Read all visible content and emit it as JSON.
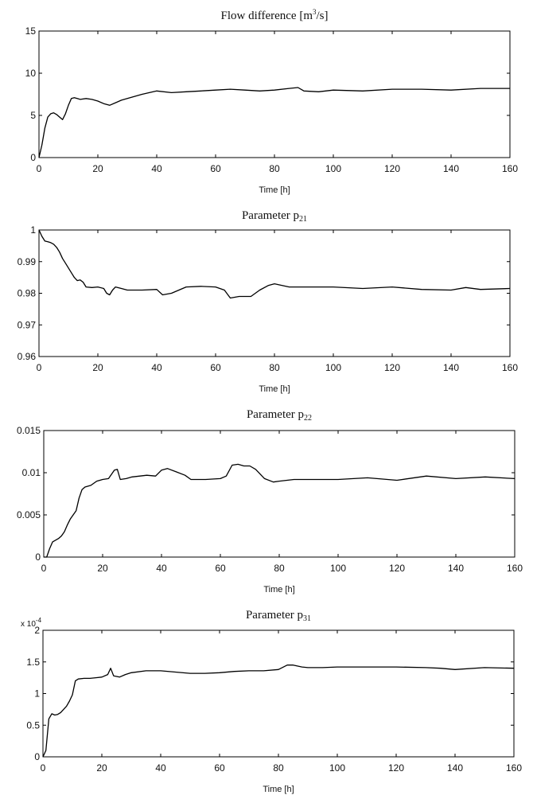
{
  "chart_data": [
    {
      "type": "line",
      "title": {
        "main": "Flow difference [m",
        "sup": "3",
        "tail": "/s]"
      },
      "xlabel": "Time [h]",
      "ylabel": "",
      "xlim": [
        0,
        160
      ],
      "ylim": [
        0,
        15
      ],
      "xticks": [
        0,
        20,
        40,
        60,
        80,
        100,
        120,
        140,
        160
      ],
      "xtick_labels": [
        "0",
        "20",
        "40",
        "60",
        "80",
        "100",
        "120",
        "140",
        "160"
      ],
      "yticks": [
        0,
        5,
        10,
        15
      ],
      "ytick_labels": [
        "0",
        "5",
        "10",
        "15"
      ],
      "grid": false,
      "series": [
        {
          "x": [
            0,
            1,
            2,
            3,
            4,
            5,
            6,
            7,
            8,
            9,
            10,
            11,
            12,
            13,
            14,
            16,
            18,
            20,
            22,
            24,
            26,
            28,
            30,
            35,
            40,
            45,
            50,
            55,
            60,
            65,
            70,
            75,
            80,
            85,
            88,
            90,
            95,
            100,
            110,
            120,
            130,
            140,
            150,
            160
          ],
          "y": [
            0,
            1.5,
            3.5,
            4.8,
            5.2,
            5.3,
            5.1,
            4.8,
            4.5,
            5.2,
            6.2,
            7.0,
            7.1,
            7.0,
            6.9,
            7.0,
            6.9,
            6.7,
            6.4,
            6.2,
            6.5,
            6.8,
            7.0,
            7.5,
            7.9,
            7.7,
            7.8,
            7.9,
            8.0,
            8.1,
            8.0,
            7.9,
            8.0,
            8.2,
            8.3,
            7.9,
            7.8,
            8.0,
            7.9,
            8.1,
            8.1,
            8.0,
            8.2,
            8.2
          ]
        }
      ]
    },
    {
      "type": "line",
      "title": {
        "main": "Parameter p",
        "sub": "21"
      },
      "xlabel": "Time [h]",
      "ylabel": "",
      "xlim": [
        0,
        160
      ],
      "ylim": [
        0.96,
        1
      ],
      "xticks": [
        0,
        20,
        40,
        60,
        80,
        100,
        120,
        140,
        160
      ],
      "xtick_labels": [
        "0",
        "20",
        "40",
        "60",
        "80",
        "100",
        "120",
        "140",
        "160"
      ],
      "yticks": [
        0.96,
        0.97,
        0.98,
        0.99,
        1
      ],
      "ytick_labels": [
        "0.96",
        "0.97",
        "0.98",
        "0.99",
        "1"
      ],
      "grid": false,
      "series": [
        {
          "x": [
            0,
            1,
            2,
            3,
            4,
            5,
            6,
            7,
            8,
            9,
            10,
            11,
            12,
            13,
            14,
            15,
            16,
            18,
            20,
            22,
            23,
            24,
            25,
            26,
            28,
            30,
            35,
            40,
            42,
            45,
            50,
            55,
            60,
            63,
            65,
            68,
            72,
            75,
            78,
            80,
            85,
            90,
            100,
            110,
            120,
            130,
            140,
            145,
            150,
            160
          ],
          "y": [
            1,
            0.998,
            0.9965,
            0.9963,
            0.996,
            0.9955,
            0.9945,
            0.993,
            0.991,
            0.9895,
            0.988,
            0.9865,
            0.985,
            0.984,
            0.9842,
            0.9835,
            0.982,
            0.9818,
            0.982,
            0.9815,
            0.98,
            0.9795,
            0.981,
            0.982,
            0.9815,
            0.981,
            0.981,
            0.9812,
            0.9795,
            0.98,
            0.982,
            0.9822,
            0.982,
            0.981,
            0.9785,
            0.979,
            0.979,
            0.981,
            0.9825,
            0.983,
            0.982,
            0.982,
            0.982,
            0.9815,
            0.982,
            0.9812,
            0.981,
            0.9818,
            0.9812,
            0.9815
          ]
        }
      ]
    },
    {
      "type": "line",
      "title": {
        "main": "Parameter p",
        "sub": "22"
      },
      "xlabel": "Time [h]",
      "ylabel": "",
      "xlim": [
        0,
        160
      ],
      "ylim": [
        0,
        0.015
      ],
      "xticks": [
        0,
        20,
        40,
        60,
        80,
        100,
        120,
        140,
        160
      ],
      "xtick_labels": [
        "0",
        "20",
        "40",
        "60",
        "80",
        "100",
        "120",
        "140",
        "160"
      ],
      "yticks": [
        0,
        0.005,
        0.01,
        0.015
      ],
      "ytick_labels": [
        "0",
        "0.005",
        "0.01",
        "0.015"
      ],
      "grid": false,
      "series": [
        {
          "x": [
            0,
            1,
            2,
            3,
            4,
            5,
            6,
            7,
            8,
            9,
            10,
            11,
            12,
            13,
            14,
            16,
            18,
            20,
            22,
            24,
            25,
            26,
            28,
            30,
            35,
            38,
            40,
            42,
            45,
            48,
            50,
            55,
            60,
            62,
            64,
            66,
            68,
            70,
            72,
            75,
            78,
            80,
            85,
            90,
            100,
            110,
            120,
            130,
            140,
            150,
            160
          ],
          "y": [
            0,
            0,
            0.001,
            0.0018,
            0.002,
            0.0022,
            0.0025,
            0.003,
            0.0038,
            0.0045,
            0.005,
            0.0055,
            0.007,
            0.008,
            0.0083,
            0.0085,
            0.009,
            0.0092,
            0.0093,
            0.0103,
            0.0104,
            0.0092,
            0.0093,
            0.0095,
            0.0097,
            0.0096,
            0.0103,
            0.0105,
            0.0101,
            0.0097,
            0.0092,
            0.0092,
            0.0093,
            0.0096,
            0.0109,
            0.011,
            0.0108,
            0.0108,
            0.0104,
            0.0093,
            0.0089,
            0.009,
            0.0092,
            0.0092,
            0.0092,
            0.0094,
            0.0091,
            0.0096,
            0.0093,
            0.0095,
            0.0093
          ]
        }
      ]
    },
    {
      "type": "line",
      "title": {
        "main": "Parameter p",
        "sub": "31"
      },
      "xlabel": "Time [h]",
      "ylabel": "",
      "y_multiplier": "x 10",
      "y_multiplier_exp": "-4",
      "xlim": [
        0,
        160
      ],
      "ylim": [
        0,
        2
      ],
      "xticks": [
        0,
        20,
        40,
        60,
        80,
        100,
        120,
        140,
        160
      ],
      "xtick_labels": [
        "0",
        "20",
        "40",
        "60",
        "80",
        "100",
        "120",
        "140",
        "160"
      ],
      "yticks": [
        0,
        0.5,
        1,
        1.5,
        2
      ],
      "ytick_labels": [
        "0",
        "0.5",
        "1",
        "1.5",
        "2"
      ],
      "grid": false,
      "series": [
        {
          "x": [
            0,
            1,
            2,
            3,
            4,
            5,
            6,
            7,
            8,
            9,
            10,
            11,
            12,
            14,
            16,
            18,
            20,
            22,
            23,
            24,
            26,
            28,
            30,
            35,
            40,
            45,
            50,
            55,
            60,
            65,
            70,
            75,
            80,
            83,
            85,
            88,
            90,
            95,
            100,
            110,
            120,
            130,
            135,
            140,
            150,
            160
          ],
          "y": [
            0,
            0.1,
            0.6,
            0.68,
            0.66,
            0.67,
            0.7,
            0.75,
            0.8,
            0.88,
            0.98,
            1.2,
            1.23,
            1.24,
            1.24,
            1.25,
            1.26,
            1.3,
            1.4,
            1.28,
            1.26,
            1.3,
            1.33,
            1.36,
            1.36,
            1.34,
            1.32,
            1.32,
            1.33,
            1.35,
            1.36,
            1.36,
            1.38,
            1.45,
            1.45,
            1.42,
            1.41,
            1.41,
            1.42,
            1.42,
            1.42,
            1.41,
            1.4,
            1.38,
            1.41,
            1.4
          ]
        }
      ]
    }
  ]
}
